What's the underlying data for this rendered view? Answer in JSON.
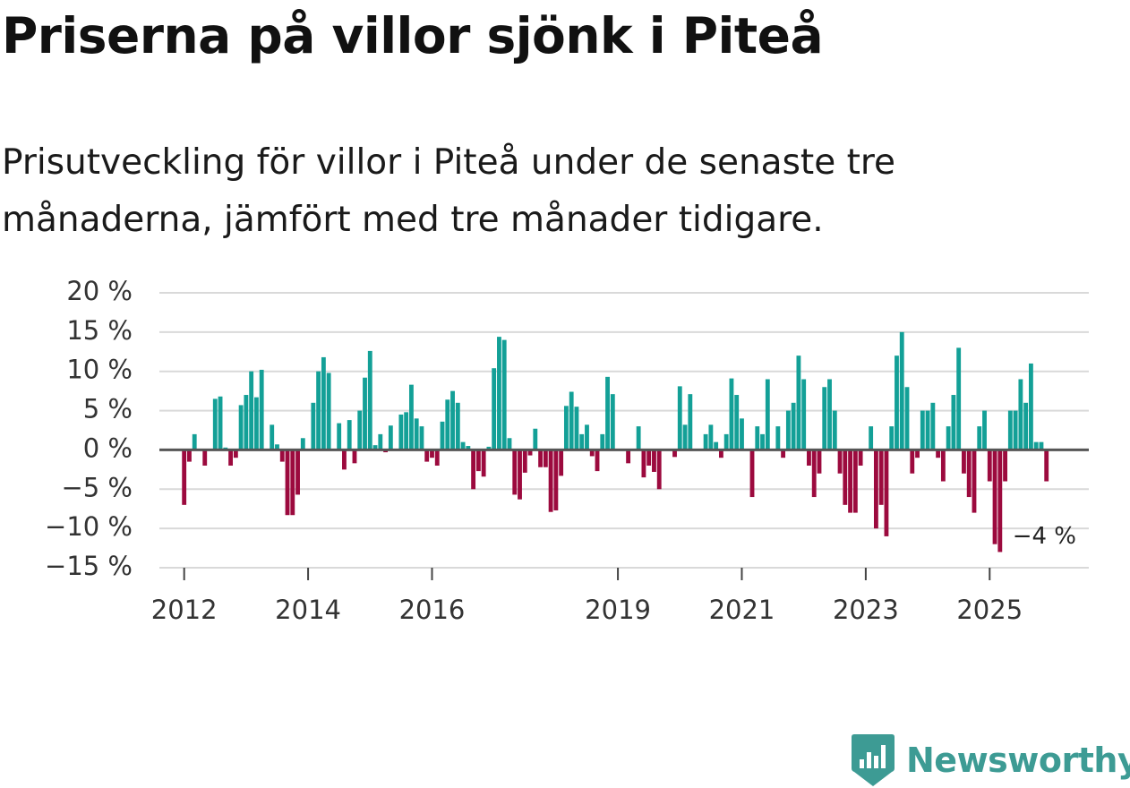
{
  "title": "Priserna på villor sjönk i Piteå",
  "subtitle": "Prisutveckling för villor i Piteå under de senaste tre månaderna, jämfört med tre månader tidigare.",
  "brand": {
    "name": "Newsworthy",
    "color": "#3d9b94"
  },
  "colors": {
    "positive": "#13a097",
    "negative": "#9c0a3e",
    "grid": "#d9d9d9",
    "zero": "#555555"
  },
  "chart_data": {
    "type": "bar",
    "title": "Priserna på villor sjönk i Piteå",
    "ylabel": "",
    "xlabel": "",
    "ylim": [
      -15,
      20
    ],
    "xlim": [
      2011.6,
      2026.6
    ],
    "y_ticks": [
      20,
      15,
      10,
      5,
      0,
      -5,
      -10,
      -15
    ],
    "y_tick_labels": [
      "20 %",
      "15 %",
      "10 %",
      "5 %",
      "0 %",
      "−5 %",
      "−10 %",
      "−15 %"
    ],
    "x_ticks": [
      2012,
      2014,
      2016,
      2019,
      2021,
      2023,
      2025
    ],
    "x_tick_labels": [
      "2012",
      "2014",
      "2016",
      "2019",
      "2021",
      "2023",
      "2025"
    ],
    "start": {
      "year": 2012,
      "month": 1
    },
    "values": [
      -7,
      -1.5,
      2,
      0,
      -2,
      0,
      6.5,
      6.8,
      0.3,
      -2,
      -1,
      5.7,
      7,
      10,
      6.7,
      10.2,
      0,
      3.2,
      0.7,
      -1.5,
      -8.3,
      -8.3,
      -5.7,
      1.5,
      0,
      6,
      10,
      11.8,
      9.8,
      0,
      3.4,
      -2.5,
      3.8,
      -1.7,
      5,
      9.2,
      12.6,
      0.6,
      2,
      -0.3,
      3.1,
      0,
      4.5,
      4.8,
      8.3,
      4,
      3,
      -1.5,
      -1,
      -2,
      3.6,
      6.4,
      7.5,
      6,
      1,
      0.5,
      -5,
      -2.7,
      -3.4,
      0.4,
      10.4,
      14.4,
      14,
      1.5,
      -5.7,
      -6.3,
      -2.9,
      -0.7,
      2.7,
      -2.2,
      -2.2,
      -7.9,
      -7.7,
      -3.3,
      5.6,
      7.4,
      5.5,
      2,
      3.2,
      -0.8,
      -2.7,
      2,
      9.3,
      7.1,
      0,
      0,
      -1.7,
      0,
      3,
      -3.5,
      -2,
      -2.8,
      -5,
      0,
      0,
      -0.9,
      8.1,
      3.2,
      7.1,
      0,
      0,
      2,
      3.2,
      1,
      -1,
      2,
      9.1,
      7,
      4,
      0,
      -6,
      3,
      2,
      9,
      0,
      3,
      -1,
      5,
      6,
      12,
      9,
      -2,
      -6,
      -3,
      8,
      9,
      5,
      -3,
      -7,
      -8,
      -8,
      -2,
      0,
      3,
      -10,
      -7,
      -11,
      3,
      12,
      15,
      8,
      -3,
      -1,
      5,
      5,
      6,
      -1,
      -4,
      3,
      7,
      13,
      -3,
      -6,
      -8,
      3,
      5,
      -4,
      -12,
      -13,
      -4,
      5,
      5,
      9,
      6,
      11,
      1,
      1,
      -4
    ],
    "annotations": [
      {
        "text": "−4 %",
        "x_index": 167,
        "y": -4
      }
    ]
  }
}
